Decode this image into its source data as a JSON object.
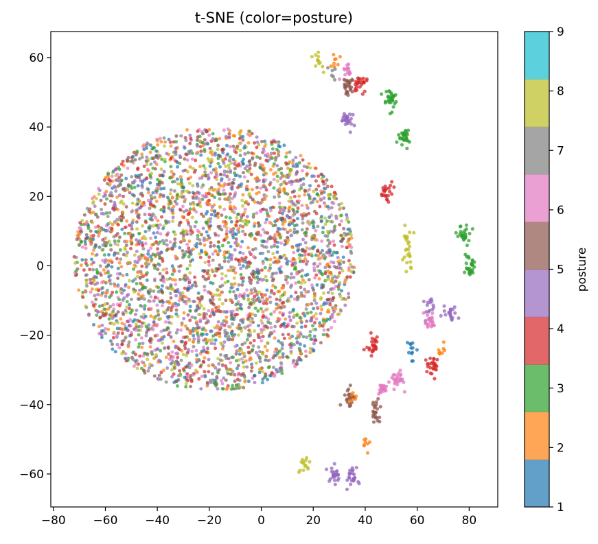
{
  "chart_data": {
    "type": "scatter",
    "title": "t-SNE (color=posture)",
    "xlabel": "",
    "ylabel": "",
    "xlim": [
      -81,
      91
    ],
    "ylim": [
      -69.5,
      67.5
    ],
    "xticks": [
      -80,
      -60,
      -40,
      -20,
      0,
      20,
      40,
      60,
      80
    ],
    "yticks": [
      -60,
      -40,
      -20,
      0,
      20,
      40,
      60
    ],
    "grid": false,
    "colormap": "tab10",
    "colorbar": {
      "label": "posture",
      "range": [
        1,
        9
      ],
      "ticks": [
        1,
        2,
        3,
        4,
        5,
        6,
        7,
        8,
        9
      ],
      "colors": [
        "#1f77b4",
        "#ff7f0e",
        "#2ca02c",
        "#d62728",
        "#9467bd",
        "#8c564b",
        "#e377c2",
        "#7f7f7f",
        "#bcbd22",
        "#17becf"
      ]
    },
    "main_cloud": {
      "center": [
        -20,
        2
      ],
      "x_range": [
        -72,
        36
      ],
      "y_range": [
        -36,
        40
      ],
      "approx_points": 3400,
      "classes": [
        1,
        2,
        3,
        4,
        5,
        6,
        7,
        8,
        9
      ]
    },
    "clusters": [
      {
        "class": 9,
        "x": 22,
        "y": 59,
        "n": 12
      },
      {
        "class": 2,
        "x": 28,
        "y": 59,
        "n": 8
      },
      {
        "class": 8,
        "x": 28,
        "y": 55,
        "n": 6
      },
      {
        "class": 7,
        "x": 33,
        "y": 56,
        "n": 15
      },
      {
        "class": 6,
        "x": 33,
        "y": 52,
        "n": 25
      },
      {
        "class": 4,
        "x": 38,
        "y": 53,
        "n": 25
      },
      {
        "class": 3,
        "x": 50,
        "y": 48,
        "n": 30
      },
      {
        "class": 5,
        "x": 33,
        "y": 42,
        "n": 25
      },
      {
        "class": 3,
        "x": 55,
        "y": 37,
        "n": 28
      },
      {
        "class": 4,
        "x": 48,
        "y": 21,
        "n": 22
      },
      {
        "class": 9,
        "x": 56,
        "y": 8,
        "n": 12
      },
      {
        "class": 9,
        "x": 57,
        "y": 3,
        "n": 14
      },
      {
        "class": 3,
        "x": 78,
        "y": 9,
        "n": 25
      },
      {
        "class": 3,
        "x": 80,
        "y": 0,
        "n": 28
      },
      {
        "class": 5,
        "x": 65,
        "y": -12,
        "n": 15
      },
      {
        "class": 5,
        "x": 73,
        "y": -14,
        "n": 20
      },
      {
        "class": 7,
        "x": 65,
        "y": -16,
        "n": 20
      },
      {
        "class": 4,
        "x": 43,
        "y": -23,
        "n": 25
      },
      {
        "class": 1,
        "x": 58,
        "y": -24,
        "n": 12
      },
      {
        "class": 4,
        "x": 66,
        "y": -29,
        "n": 25
      },
      {
        "class": 2,
        "x": 69,
        "y": -24,
        "n": 8
      },
      {
        "class": 7,
        "x": 53,
        "y": -33,
        "n": 25
      },
      {
        "class": 7,
        "x": 47,
        "y": -36,
        "n": 20
      },
      {
        "class": 6,
        "x": 34,
        "y": -38,
        "n": 22
      },
      {
        "class": 2,
        "x": 36,
        "y": -37,
        "n": 6
      },
      {
        "class": 6,
        "x": 44,
        "y": -42,
        "n": 22
      },
      {
        "class": 2,
        "x": 40,
        "y": -51,
        "n": 8
      },
      {
        "class": 9,
        "x": 17,
        "y": -57,
        "n": 14
      },
      {
        "class": 5,
        "x": 28,
        "y": -60,
        "n": 25
      },
      {
        "class": 5,
        "x": 35,
        "y": -61,
        "n": 25
      }
    ]
  }
}
